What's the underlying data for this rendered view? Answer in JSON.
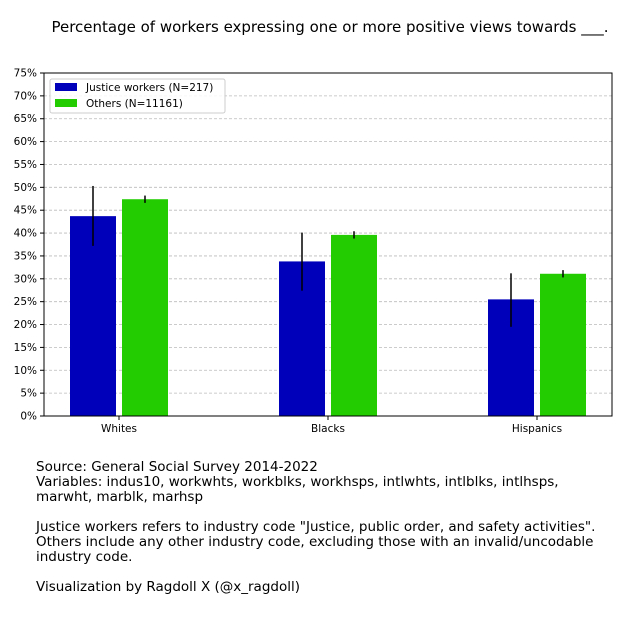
{
  "chart_data": {
    "type": "bar",
    "title": "Percentage of workers expressing one or more positive views towards ___.",
    "xlabel": "",
    "ylabel": "",
    "categories": [
      "Whites",
      "Blacks",
      "Hispanics"
    ],
    "series": [
      {
        "name": "Justice workers (N=217)",
        "color": "#0000bb",
        "values": [
          43.7,
          33.8,
          25.5
        ],
        "err_low": [
          37.2,
          27.4,
          19.5
        ],
        "err_high": [
          50.3,
          40.1,
          31.2
        ]
      },
      {
        "name": "Others (N=11161)",
        "color": "#22cc00",
        "values": [
          47.4,
          39.6,
          31.1
        ],
        "err_low": [
          46.6,
          38.8,
          30.3
        ],
        "err_high": [
          48.2,
          40.4,
          31.9
        ]
      }
    ],
    "ylim": [
      0,
      75
    ],
    "yticks": [
      "0%",
      "5%",
      "10%",
      "15%",
      "20%",
      "25%",
      "30%",
      "35%",
      "40%",
      "45%",
      "50%",
      "55%",
      "60%",
      "65%",
      "70%",
      "75%"
    ],
    "grid": true,
    "legend_position": "top-left"
  },
  "footer": {
    "source": "Source: General Social Survey 2014-2022",
    "variables": "Variables: indus10, workwhts, workblks, workhsps, intlwhts, intlblks, intlhsps, marwht, marblk, marhsp",
    "note": "Justice workers refers to industry code \"Justice, public order, and safety activities\". Others include any other industry code, excluding those with an invalid/uncodable industry code.",
    "credit": "Visualization by Ragdoll X (@x_ragdoll)"
  }
}
